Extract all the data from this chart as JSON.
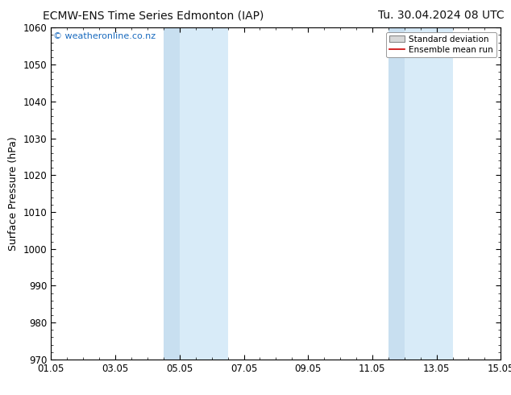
{
  "title_left": "ECMW-ENS Time Series Edmonton (IAP)",
  "title_right": "Tu. 30.04.2024 08 UTC",
  "ylabel": "Surface Pressure (hPa)",
  "ylim": [
    970,
    1060
  ],
  "yticks": [
    970,
    980,
    990,
    1000,
    1010,
    1020,
    1030,
    1040,
    1050,
    1060
  ],
  "xlim": [
    0,
    14
  ],
  "xtick_labels": [
    "01.05",
    "03.05",
    "05.05",
    "07.05",
    "09.05",
    "11.05",
    "13.05",
    "15.05"
  ],
  "xtick_positions": [
    0,
    2,
    4,
    6,
    8,
    10,
    12,
    14
  ],
  "shaded_bands": [
    {
      "start": 3.5,
      "end": 4.0,
      "color": "#c8dff0"
    },
    {
      "start": 4.0,
      "end": 5.5,
      "color": "#d8ebf8"
    },
    {
      "start": 10.5,
      "end": 11.0,
      "color": "#c8dff0"
    },
    {
      "start": 11.0,
      "end": 12.5,
      "color": "#d8ebf8"
    }
  ],
  "watermark_text": "© weatheronline.co.nz",
  "watermark_color": "#1a6bbf",
  "legend_std_dev_label": "Standard deviation",
  "legend_mean_label": "Ensemble mean run",
  "legend_std_color": "#d8d8d8",
  "legend_mean_color": "#cc0000",
  "bg_color": "#ffffff",
  "title_fontsize": 10,
  "axis_label_fontsize": 9,
  "tick_fontsize": 8.5
}
